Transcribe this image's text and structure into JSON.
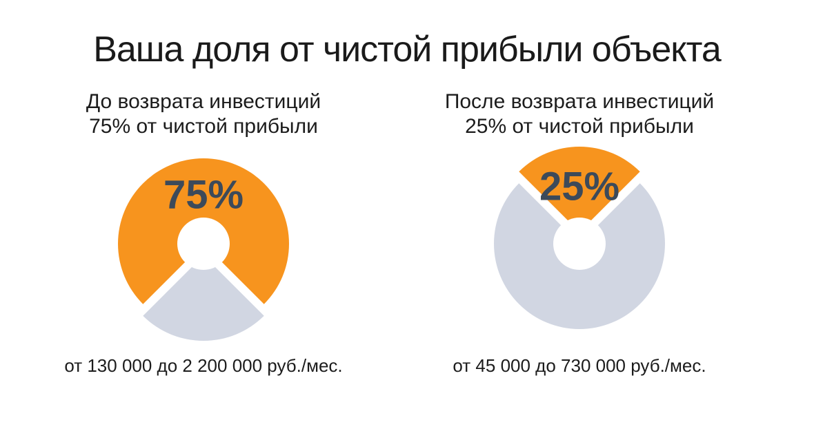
{
  "page": {
    "title": "Ваша доля от чистой прибыли объекта"
  },
  "colors": {
    "accent_orange": "#F7941E",
    "soft_gray": "#D1D6E2",
    "percent_label": "#3C4A5A",
    "text": "#1C1C1C",
    "background": "#FFFFFF"
  },
  "chart_data": [
    {
      "type": "pie",
      "variant": "donut-with-exploded-slice",
      "subtitle_lines": [
        "До возврата инвестиций",
        "75% от чистой прибыли"
      ],
      "center_label": "75%",
      "footer": "от 130 000 до 2 200 000 руб./мес.",
      "legend": "none",
      "slices": [
        {
          "value": 75,
          "color": "#F7941E",
          "exploded": false
        },
        {
          "value": 25,
          "color": "#D1D6E2",
          "exploded": true,
          "explode_direction": "bottom"
        }
      ]
    },
    {
      "type": "pie",
      "variant": "donut-with-exploded-slice",
      "subtitle_lines": [
        "После возврата инвестиций",
        "25% от чистой прибыли"
      ],
      "center_label": "25%",
      "footer": "от 45 000 до 730 000 руб./мес.",
      "legend": "none",
      "slices": [
        {
          "value": 25,
          "color": "#F7941E",
          "exploded": true,
          "explode_direction": "top"
        },
        {
          "value": 75,
          "color": "#D1D6E2",
          "exploded": false
        }
      ]
    }
  ]
}
